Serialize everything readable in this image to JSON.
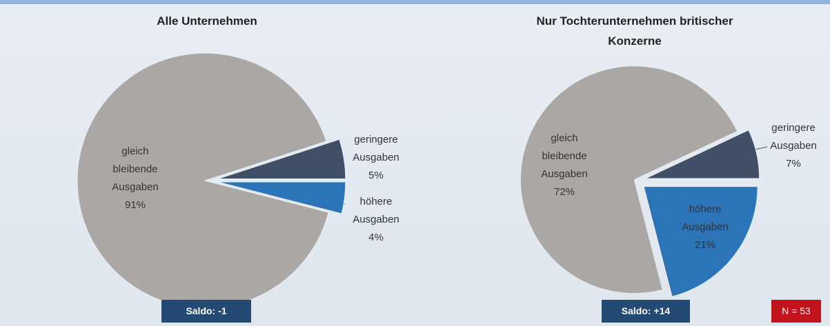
{
  "chart_data": [
    {
      "type": "pie",
      "title": "Alle Unternehmen",
      "categories": [
        "geringere Ausgaben",
        "höhere Ausgaben",
        "gleich bleibende Ausgaben"
      ],
      "values": [
        5,
        4,
        91
      ],
      "value_labels": [
        "5%",
        "4%",
        "91%"
      ],
      "colors": [
        "#404e66",
        "#2b74b8",
        "#aba7a5"
      ],
      "annotation": "Saldo: -1"
    },
    {
      "type": "pie",
      "title": "Nur Tochterunternehmen britischer Konzerne",
      "categories": [
        "geringere Ausgaben",
        "höhere Ausgaben",
        "gleich bleibende Ausgaben"
      ],
      "values": [
        7,
        21,
        72
      ],
      "value_labels": [
        "7%",
        "21%",
        "72%"
      ],
      "colors": [
        "#404e66",
        "#2b74b8",
        "#aba7a5"
      ],
      "annotation": "Saldo: +14"
    }
  ],
  "sample_size": "N = 53"
}
